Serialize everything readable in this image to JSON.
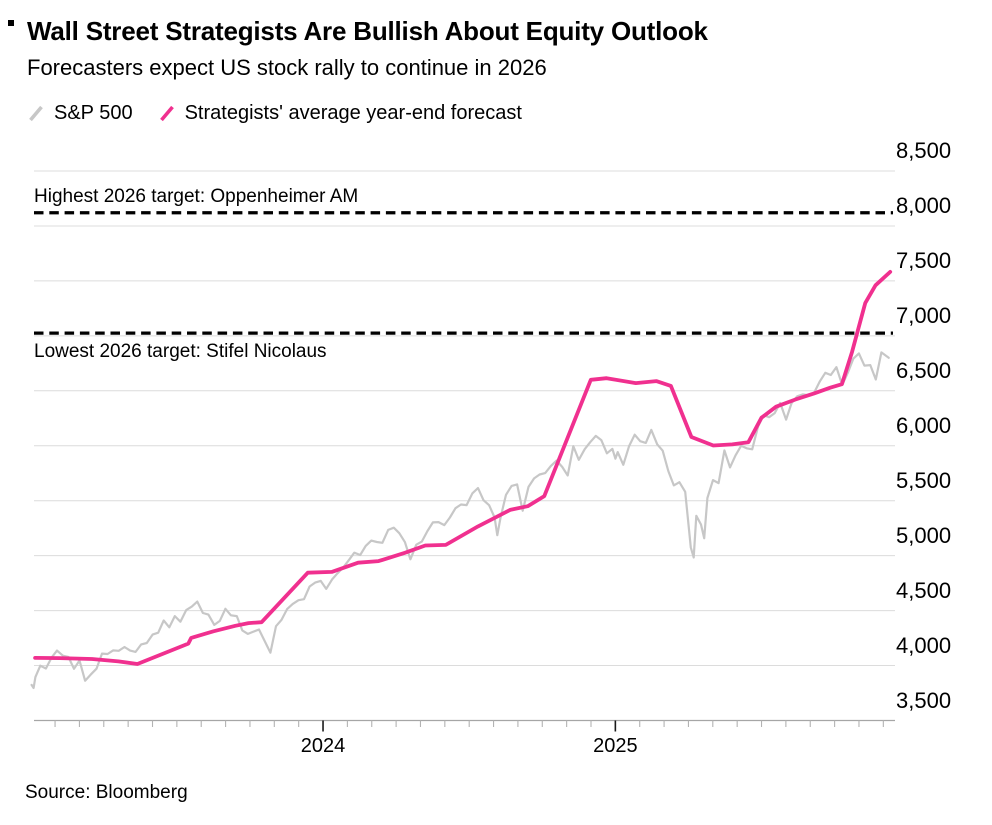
{
  "header": {
    "title": "Wall Street Strategists Are Bullish About Equity Outlook",
    "subtitle": "Forecasters expect US stock rally to continue in 2026"
  },
  "legend": {
    "items": [
      {
        "label": "S&P 500",
        "color": "#c7c7c7"
      },
      {
        "label": "Strategists' average year-end forecast",
        "color": "#f0308f"
      }
    ]
  },
  "footer": {
    "source": "Source: Bloomberg"
  },
  "chart_data": {
    "type": "line",
    "title": "Wall Street Strategists Are Bullish About Equity Outlook",
    "subtitle": "Forecasters expect US stock rally to continue in 2026",
    "time_unit": "t = years since 2023-01-01",
    "x_axis": {
      "start": "2023-01",
      "end": "2025-12",
      "year_ticks": [
        {
          "t": 1,
          "label": "2024"
        },
        {
          "t": 2,
          "label": "2025"
        }
      ],
      "minor_ticks": "monthly"
    },
    "y_axis": {
      "min": 3500,
      "max": 8500,
      "step": 500,
      "tick_labels": [
        "8,500",
        "8,000",
        "7,500",
        "7,000",
        "6,500",
        "6,000",
        "5,500",
        "5,000",
        "4,500",
        "4,000",
        "3,500"
      ],
      "grid": true,
      "labels_side": "right"
    },
    "target_lines": [
      {
        "label": "Highest 2026 target: Oppenheimer AM",
        "value": 8120,
        "label_side": "above",
        "style": "dashed",
        "color": "#000000"
      },
      {
        "label": "Lowest 2026 target: Stifel Nicolaus",
        "value": 7025,
        "label_side": "below",
        "style": "dashed",
        "color": "#000000"
      }
    ],
    "series": [
      {
        "name": "S&P 500",
        "color": "#c7c7c7",
        "width": 2.2,
        "points": [
          [
            0.003,
            3824
          ],
          [
            0.01,
            3796
          ],
          [
            0.016,
            3895
          ],
          [
            0.033,
            3999
          ],
          [
            0.052,
            3973
          ],
          [
            0.071,
            4071
          ],
          [
            0.09,
            4136
          ],
          [
            0.11,
            4090
          ],
          [
            0.129,
            4079
          ],
          [
            0.148,
            3970
          ],
          [
            0.167,
            4046
          ],
          [
            0.186,
            3862
          ],
          [
            0.205,
            3917
          ],
          [
            0.225,
            3971
          ],
          [
            0.244,
            4109
          ],
          [
            0.263,
            4105
          ],
          [
            0.282,
            4138
          ],
          [
            0.301,
            4134
          ],
          [
            0.321,
            4169
          ],
          [
            0.34,
            4136
          ],
          [
            0.359,
            4124
          ],
          [
            0.378,
            4192
          ],
          [
            0.397,
            4205
          ],
          [
            0.417,
            4282
          ],
          [
            0.436,
            4299
          ],
          [
            0.455,
            4410
          ],
          [
            0.474,
            4348
          ],
          [
            0.493,
            4450
          ],
          [
            0.512,
            4399
          ],
          [
            0.532,
            4505
          ],
          [
            0.551,
            4536
          ],
          [
            0.57,
            4582
          ],
          [
            0.589,
            4478
          ],
          [
            0.608,
            4464
          ],
          [
            0.628,
            4370
          ],
          [
            0.647,
            4406
          ],
          [
            0.666,
            4516
          ],
          [
            0.685,
            4457
          ],
          [
            0.705,
            4450
          ],
          [
            0.724,
            4320
          ],
          [
            0.743,
            4288
          ],
          [
            0.762,
            4309
          ],
          [
            0.781,
            4328
          ],
          [
            0.8,
            4224
          ],
          [
            0.82,
            4117
          ],
          [
            0.839,
            4358
          ],
          [
            0.858,
            4415
          ],
          [
            0.877,
            4514
          ],
          [
            0.896,
            4559
          ],
          [
            0.916,
            4595
          ],
          [
            0.935,
            4604
          ],
          [
            0.954,
            4719
          ],
          [
            0.973,
            4755
          ],
          [
            0.992,
            4770
          ],
          [
            1.011,
            4697
          ],
          [
            1.031,
            4784
          ],
          [
            1.05,
            4840
          ],
          [
            1.069,
            4891
          ],
          [
            1.088,
            4959
          ],
          [
            1.107,
            5027
          ],
          [
            1.127,
            5006
          ],
          [
            1.146,
            5089
          ],
          [
            1.165,
            5137
          ],
          [
            1.184,
            5124
          ],
          [
            1.203,
            5117
          ],
          [
            1.223,
            5234
          ],
          [
            1.242,
            5254
          ],
          [
            1.261,
            5204
          ],
          [
            1.28,
            5123
          ],
          [
            1.299,
            4967
          ],
          [
            1.319,
            5100
          ],
          [
            1.338,
            5128
          ],
          [
            1.357,
            5223
          ],
          [
            1.376,
            5303
          ],
          [
            1.395,
            5305
          ],
          [
            1.415,
            5278
          ],
          [
            1.434,
            5347
          ],
          [
            1.453,
            5432
          ],
          [
            1.472,
            5465
          ],
          [
            1.491,
            5460
          ],
          [
            1.511,
            5567
          ],
          [
            1.53,
            5615
          ],
          [
            1.549,
            5505
          ],
          [
            1.568,
            5459
          ],
          [
            1.587,
            5347
          ],
          [
            1.596,
            5186
          ],
          [
            1.607,
            5344
          ],
          [
            1.626,
            5554
          ],
          [
            1.645,
            5635
          ],
          [
            1.664,
            5648
          ],
          [
            1.683,
            5408
          ],
          [
            1.703,
            5626
          ],
          [
            1.722,
            5703
          ],
          [
            1.741,
            5738
          ],
          [
            1.76,
            5751
          ],
          [
            1.779,
            5815
          ],
          [
            1.799,
            5865
          ],
          [
            1.818,
            5808
          ],
          [
            1.837,
            5729
          ],
          [
            1.856,
            5996
          ],
          [
            1.875,
            5871
          ],
          [
            1.895,
            5969
          ],
          [
            1.914,
            6032
          ],
          [
            1.933,
            6090
          ],
          [
            1.952,
            6051
          ],
          [
            1.971,
            5931
          ],
          [
            1.99,
            5971
          ],
          [
            2.0,
            5882
          ],
          [
            2.008,
            5942
          ],
          [
            2.027,
            5827
          ],
          [
            2.047,
            5997
          ],
          [
            2.066,
            6101
          ],
          [
            2.085,
            6041
          ],
          [
            2.104,
            6026
          ],
          [
            2.123,
            6144
          ],
          [
            2.143,
            6013
          ],
          [
            2.162,
            5955
          ],
          [
            2.181,
            5770
          ],
          [
            2.2,
            5639
          ],
          [
            2.219,
            5668
          ],
          [
            2.239,
            5581
          ],
          [
            2.258,
            5074
          ],
          [
            2.268,
            4983
          ],
          [
            2.277,
            5363
          ],
          [
            2.293,
            5283
          ],
          [
            2.304,
            5158
          ],
          [
            2.315,
            5525
          ],
          [
            2.334,
            5687
          ],
          [
            2.353,
            5660
          ],
          [
            2.373,
            5958
          ],
          [
            2.392,
            5803
          ],
          [
            2.411,
            5912
          ],
          [
            2.43,
            6000
          ],
          [
            2.449,
            5977
          ],
          [
            2.468,
            5968
          ],
          [
            2.488,
            6173
          ],
          [
            2.507,
            6279
          ],
          [
            2.526,
            6260
          ],
          [
            2.545,
            6297
          ],
          [
            2.564,
            6389
          ],
          [
            2.584,
            6238
          ],
          [
            2.603,
            6389
          ],
          [
            2.622,
            6450
          ],
          [
            2.641,
            6467
          ],
          [
            2.66,
            6460
          ],
          [
            2.68,
            6482
          ],
          [
            2.699,
            6584
          ],
          [
            2.718,
            6664
          ],
          [
            2.737,
            6644
          ],
          [
            2.756,
            6716
          ],
          [
            2.776,
            6553
          ],
          [
            2.795,
            6664
          ],
          [
            2.814,
            6792
          ],
          [
            2.833,
            6840
          ],
          [
            2.852,
            6729
          ],
          [
            2.872,
            6734
          ],
          [
            2.891,
            6603
          ],
          [
            2.91,
            6849
          ],
          [
            2.935,
            6800
          ]
        ]
      },
      {
        "name": "Strategists' average year-end forecast",
        "color": "#f0308f",
        "width": 3.8,
        "points": [
          [
            0.015,
            4070
          ],
          [
            0.1,
            4068
          ],
          [
            0.21,
            4060
          ],
          [
            0.3,
            4038
          ],
          [
            0.365,
            4014
          ],
          [
            0.539,
            4200
          ],
          [
            0.549,
            4252
          ],
          [
            0.625,
            4312
          ],
          [
            0.7,
            4362
          ],
          [
            0.745,
            4386
          ],
          [
            0.79,
            4394
          ],
          [
            0.948,
            4845
          ],
          [
            1.03,
            4852
          ],
          [
            1.12,
            4936
          ],
          [
            1.19,
            4950
          ],
          [
            1.28,
            5026
          ],
          [
            1.35,
            5092
          ],
          [
            1.42,
            5098
          ],
          [
            1.53,
            5266
          ],
          [
            1.64,
            5416
          ],
          [
            1.7,
            5450
          ],
          [
            1.757,
            5542
          ],
          [
            1.916,
            6600
          ],
          [
            1.97,
            6615
          ],
          [
            2.07,
            6570
          ],
          [
            2.14,
            6588
          ],
          [
            2.19,
            6545
          ],
          [
            2.26,
            6080
          ],
          [
            2.335,
            6002
          ],
          [
            2.4,
            6012
          ],
          [
            2.455,
            6032
          ],
          [
            2.5,
            6255
          ],
          [
            2.55,
            6355
          ],
          [
            2.615,
            6420
          ],
          [
            2.68,
            6476
          ],
          [
            2.735,
            6528
          ],
          [
            2.775,
            6560
          ],
          [
            2.81,
            6855
          ],
          [
            2.855,
            7300
          ],
          [
            2.89,
            7460
          ],
          [
            2.94,
            7582
          ]
        ]
      }
    ]
  }
}
